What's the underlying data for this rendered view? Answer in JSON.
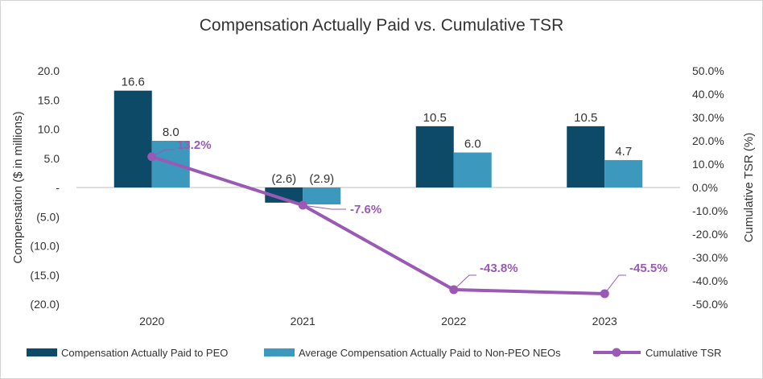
{
  "chart_data": {
    "type": "bar",
    "title": "Compensation Actually Paid vs. Cumulative TSR",
    "categories": [
      "2020",
      "2021",
      "2022",
      "2023"
    ],
    "series": [
      {
        "name": "Compensation Actually Paid to PEO",
        "kind": "bar",
        "axis": "left",
        "color": "#0d4a68",
        "values": [
          16.6,
          -2.6,
          10.5,
          10.5
        ],
        "labels": [
          "16.6",
          "(2.6)",
          "10.5",
          "10.5"
        ]
      },
      {
        "name": "Average Compensation Actually Paid to Non-PEO NEOs",
        "kind": "bar",
        "axis": "left",
        "color": "#3d98bd",
        "values": [
          8.0,
          -2.9,
          6.0,
          4.7
        ],
        "labels": [
          "8.0",
          "(2.9)",
          "6.0",
          "4.7"
        ]
      },
      {
        "name": "Cumulative TSR",
        "kind": "line",
        "axis": "right",
        "color": "#9b59b6",
        "values": [
          13.2,
          -7.6,
          -43.8,
          -45.5
        ],
        "labels": [
          "13.2%",
          "-7.6%",
          "-43.8%",
          "-45.5%"
        ]
      }
    ],
    "y_left": {
      "label": "Compensation ($ in millions)",
      "range": [
        -20,
        20
      ],
      "ticks": [
        20,
        15,
        10,
        5,
        0,
        -5,
        -10,
        -15,
        -20
      ],
      "tick_labels": [
        "20.0",
        "15.0",
        "10.0",
        "5.0",
        "-",
        "(5.0)",
        "(10.0)",
        "(15.0)",
        "(20.0)"
      ]
    },
    "y_right": {
      "label": "Cumulative TSR (%)",
      "range": [
        -50,
        50
      ],
      "ticks": [
        50,
        40,
        30,
        20,
        10,
        0,
        -10,
        -20,
        -30,
        -40,
        -50
      ],
      "tick_labels": [
        "50.0%",
        "40.0%",
        "30.0%",
        "20.0%",
        "10.0%",
        "0.0%",
        "-10.0%",
        "-20.0%",
        "-30.0%",
        "-40.0%",
        "-50.0%"
      ]
    },
    "legend_position": "bottom",
    "grid": false
  }
}
